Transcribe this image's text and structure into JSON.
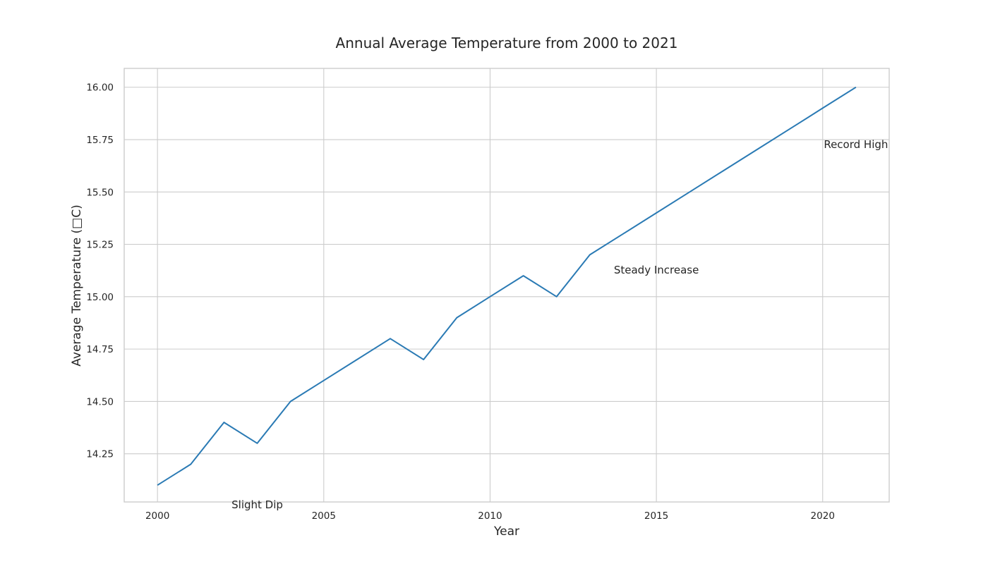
{
  "chart_data": {
    "type": "line",
    "title": "Annual Average Temperature from 2000 to 2021",
    "xlabel": "Year",
    "ylabel": "Average Temperature (□C)",
    "xlim": [
      1999,
      2022
    ],
    "ylim": [
      14.02,
      16.09
    ],
    "xticks": [
      2000,
      2005,
      2010,
      2015,
      2020
    ],
    "yticks": [
      14.25,
      14.5,
      14.75,
      15.0,
      15.25,
      15.5,
      15.75,
      16.0
    ],
    "grid": true,
    "legend": "none",
    "series": [
      {
        "color": "#2a7ab4",
        "x": [
          2000,
          2001,
          2002,
          2003,
          2004,
          2005,
          2006,
          2007,
          2008,
          2009,
          2010,
          2011,
          2012,
          2013,
          2014,
          2015,
          2016,
          2017,
          2018,
          2019,
          2020,
          2021
        ],
        "y": [
          14.1,
          14.2,
          14.4,
          14.3,
          14.5,
          14.6,
          14.7,
          14.8,
          14.7,
          14.9,
          15.0,
          15.1,
          15.0,
          15.2,
          15.3,
          15.4,
          15.5,
          15.6,
          15.7,
          15.8,
          15.9,
          16.0
        ]
      }
    ],
    "annotations": [
      {
        "text": "Slight Dip",
        "x": 2003,
        "y": 13.99
      },
      {
        "text": "Steady Increase",
        "x": 2015,
        "y": 15.11
      },
      {
        "text": "Record High",
        "x": 2021,
        "y": 15.71
      }
    ]
  }
}
